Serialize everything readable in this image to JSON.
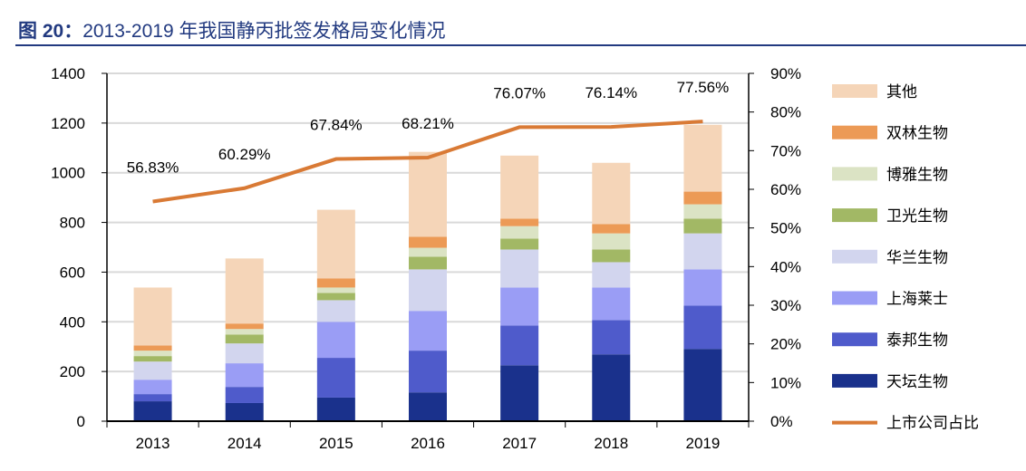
{
  "title": {
    "prefix": "图 20：",
    "text": "2013-2019 年我国静丙批签发格局变化情况"
  },
  "chart_data": {
    "type": "bar",
    "stacked": true,
    "categories": [
      "2013",
      "2014",
      "2015",
      "2016",
      "2017",
      "2018",
      "2019"
    ],
    "ylim": [
      0,
      1400
    ],
    "yticks": [
      0,
      200,
      400,
      600,
      800,
      1000,
      1200,
      1400
    ],
    "y2lim": [
      0,
      90
    ],
    "y2ticks": [
      "0%",
      "10%",
      "20%",
      "30%",
      "40%",
      "50%",
      "60%",
      "70%",
      "80%",
      "90%"
    ],
    "grid": true,
    "legend_position": "right",
    "series": [
      {
        "name": "天坛生物",
        "color": "#1a318c",
        "values": [
          80,
          73,
          95,
          116,
          225,
          269,
          291
        ]
      },
      {
        "name": "泰邦生物",
        "color": "#4f5bcb",
        "values": [
          29,
          65,
          160,
          168,
          160,
          138,
          174
        ]
      },
      {
        "name": "上海莱士",
        "color": "#9a9df5",
        "values": [
          58,
          95,
          145,
          160,
          153,
          131,
          146
        ]
      },
      {
        "name": "华兰生物",
        "color": "#d2d5ee",
        "values": [
          73,
          80,
          87,
          167,
          153,
          102,
          145
        ]
      },
      {
        "name": "卫光生物",
        "color": "#a2b865",
        "values": [
          22,
          36,
          29,
          51,
          44,
          51,
          59
        ]
      },
      {
        "name": "博雅生物",
        "color": "#dbe3c4",
        "values": [
          22,
          22,
          22,
          36,
          50,
          65,
          58
        ]
      },
      {
        "name": "双林生物",
        "color": "#ec9a56",
        "values": [
          21,
          22,
          37,
          44,
          30,
          37,
          51
        ]
      },
      {
        "name": "其他",
        "color": "#f5d5b8",
        "values": [
          233,
          262,
          276,
          342,
          254,
          247,
          269
        ]
      }
    ],
    "line": {
      "name": "上市公司占比",
      "color": "#d97a35",
      "axis": "right",
      "values": [
        56.83,
        60.29,
        67.84,
        68.21,
        76.07,
        76.14,
        77.56
      ],
      "labels": [
        "56.83%",
        "60.29%",
        "67.84%",
        "68.21%",
        "76.07%",
        "76.14%",
        "77.56%"
      ]
    }
  }
}
